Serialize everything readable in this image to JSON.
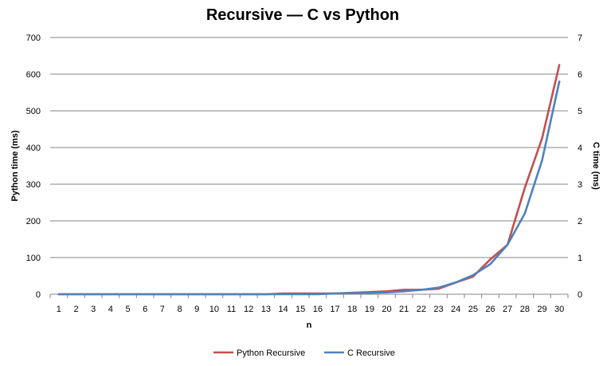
{
  "chart_data": {
    "type": "line",
    "title": "Recursive — C vs Python",
    "xlabel": "n",
    "ylabel_left": "Python time (ms)",
    "ylabel_right": "C time (ms)",
    "x": [
      1,
      2,
      3,
      4,
      5,
      6,
      7,
      8,
      9,
      10,
      11,
      12,
      13,
      14,
      15,
      16,
      17,
      18,
      19,
      20,
      21,
      22,
      23,
      24,
      25,
      26,
      27,
      28,
      29,
      30
    ],
    "ylim_left": [
      0,
      700
    ],
    "ylim_right": [
      0,
      7
    ],
    "yticks_left": [
      0,
      100,
      200,
      300,
      400,
      500,
      600,
      700
    ],
    "yticks_right": [
      0,
      1,
      2,
      3,
      4,
      5,
      6,
      7
    ],
    "grid": true,
    "legend_position": "bottom",
    "series": [
      {
        "name": "Python Recursive",
        "axis": "left",
        "color": "#c0504d",
        "values": [
          0,
          0,
          0,
          0,
          0,
          0,
          0,
          0,
          0,
          0,
          0,
          0,
          0,
          2,
          2,
          2,
          2,
          4,
          6,
          8,
          12,
          12,
          15,
          32,
          48,
          95,
          135,
          290,
          425,
          625
        ]
      },
      {
        "name": "C Recursive",
        "axis": "right",
        "color": "#4f81bd",
        "values": [
          0,
          0,
          0,
          0,
          0,
          0,
          0,
          0,
          0,
          0,
          0,
          0,
          0,
          0,
          0,
          0,
          0.02,
          0.03,
          0.04,
          0.05,
          0.08,
          0.12,
          0.18,
          0.32,
          0.52,
          0.82,
          1.35,
          2.2,
          3.65,
          5.8
        ]
      }
    ]
  }
}
